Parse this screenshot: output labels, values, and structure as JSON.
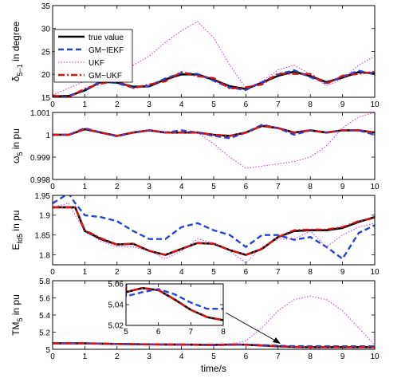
{
  "chart_data": [
    {
      "type": "line",
      "panel": "delta",
      "ylabel_main": "δ",
      "ylabel_sub": "5−1",
      "ylabel_rest": " in degree",
      "xlim": [
        0,
        10
      ],
      "ylim": [
        15,
        35
      ],
      "xticks": [
        "0",
        "1",
        "2",
        "3",
        "4",
        "5",
        "6",
        "7",
        "8",
        "9",
        "10"
      ],
      "yticks": [
        "15",
        "20",
        "25",
        "30",
        "35"
      ],
      "legend": [
        "true value",
        "GM−IEKF",
        "UKF",
        "GM−UKF"
      ],
      "series": [
        {
          "name": "true value",
          "x": [
            0,
            0.5,
            1,
            1.5,
            2,
            2.5,
            3,
            3.5,
            4,
            4.5,
            5,
            5.5,
            6,
            6.5,
            7,
            7.5,
            8,
            8.5,
            9,
            9.5,
            10
          ],
          "values": [
            15.2,
            15.3,
            16.5,
            18.4,
            18.2,
            17.3,
            17.4,
            18.9,
            20.0,
            20.0,
            18.8,
            17.4,
            16.8,
            18.2,
            19.7,
            20.6,
            19.6,
            18.3,
            19.3,
            20.5,
            20.2
          ]
        },
        {
          "name": "GM−IEKF",
          "x": [
            0,
            0.5,
            1,
            1.5,
            2,
            2.5,
            3,
            3.5,
            4,
            4.5,
            5,
            5.5,
            6,
            6.5,
            7,
            7.5,
            8,
            8.5,
            9,
            9.5,
            10
          ],
          "values": [
            15.0,
            15.2,
            16.6,
            18.5,
            18.1,
            17.1,
            17.5,
            19.1,
            20.3,
            20.1,
            18.6,
            17.1,
            16.6,
            18.3,
            20.0,
            20.9,
            19.4,
            18.1,
            19.5,
            20.8,
            20.0
          ]
        },
        {
          "name": "UKF",
          "x": [
            0,
            0.5,
            1,
            1.5,
            2,
            2.5,
            3,
            3.5,
            4,
            4.5,
            5,
            5.5,
            6,
            6.5,
            7,
            7.5,
            8,
            8.5,
            9,
            9.5,
            10
          ],
          "values": [
            15.5,
            17.0,
            18.5,
            19.5,
            19.8,
            22.0,
            24.0,
            27.0,
            29.5,
            31.5,
            28.0,
            22.0,
            17.0,
            18.5,
            21.0,
            22.0,
            20.0,
            17.5,
            19.0,
            22.0,
            24.0
          ]
        },
        {
          "name": "GM−UKF",
          "x": [
            0,
            0.5,
            1,
            1.5,
            2,
            2.5,
            3,
            3.5,
            4,
            4.5,
            5,
            5.5,
            6,
            6.5,
            7,
            7.5,
            8,
            8.5,
            9,
            9.5,
            10
          ],
          "values": [
            15.4,
            15.0,
            16.9,
            18.0,
            18.6,
            17.0,
            17.8,
            18.5,
            20.5,
            19.6,
            19.2,
            16.9,
            17.2,
            17.8,
            20.2,
            20.1,
            20.1,
            17.9,
            19.7,
            20.1,
            20.6
          ]
        }
      ]
    },
    {
      "type": "line",
      "panel": "omega",
      "ylabel_main": "ω",
      "ylabel_sub": "5",
      "ylabel_rest": " in pu",
      "xlim": [
        0,
        10
      ],
      "ylim": [
        0.998,
        1.001
      ],
      "xticks": [
        "0",
        "1",
        "2",
        "3",
        "4",
        "5",
        "6",
        "7",
        "8",
        "9",
        "10"
      ],
      "yticks": [
        "0.998",
        "0.999",
        "1",
        "1.001"
      ],
      "series": [
        {
          "name": "true value",
          "x": [
            0,
            0.5,
            1,
            1.5,
            2,
            2.5,
            3,
            3.5,
            4,
            4.5,
            5,
            5.5,
            6,
            6.5,
            7,
            7.5,
            8,
            8.5,
            9,
            9.5,
            10
          ],
          "values": [
            1.0,
            1.0,
            1.00025,
            1.0001,
            0.99995,
            1.0001,
            1.0002,
            1.0001,
            1.0001,
            1.0001,
            1.0,
            0.99995,
            1.0001,
            1.0004,
            1.0003,
            1.0001,
            1.0002,
            1.0001,
            1.0002,
            1.0002,
            1.0001
          ]
        },
        {
          "name": "GM−IEKF",
          "x": [
            0,
            0.5,
            1,
            1.5,
            2,
            2.5,
            3,
            3.5,
            4,
            4.5,
            5,
            5.5,
            6,
            6.5,
            7,
            7.5,
            8,
            8.5,
            9,
            9.5,
            10
          ],
          "values": [
            1.0,
            1.0,
            1.0003,
            1.0001,
            0.99993,
            1.0001,
            1.0002,
            1.0001,
            1.0002,
            1.0001,
            0.99995,
            0.99985,
            1.0001,
            1.00045,
            1.0003,
            1.0,
            1.0002,
            1.0001,
            1.0002,
            1.0002,
            1.0
          ]
        },
        {
          "name": "UKF",
          "x": [
            0,
            0.5,
            1,
            1.5,
            2,
            2.5,
            3,
            3.5,
            4,
            4.5,
            5,
            5.5,
            6,
            6.5,
            7,
            7.5,
            8,
            8.5,
            9,
            9.5,
            10
          ],
          "values": [
            1.0,
            1.0,
            1.0003,
            1.0001,
            0.99995,
            1.0001,
            1.0002,
            1.0001,
            1.0001,
            1.0001,
            0.9996,
            0.999,
            0.9985,
            0.9986,
            0.9987,
            0.9988,
            0.999,
            0.9995,
            1.0003,
            1.0008,
            1.001
          ]
        },
        {
          "name": "GM−UKF",
          "x": [
            0,
            0.5,
            1,
            1.5,
            2,
            2.5,
            3,
            3.5,
            4,
            4.5,
            5,
            5.5,
            6,
            6.5,
            7,
            7.5,
            8,
            8.5,
            9,
            9.5,
            10
          ],
          "values": [
            1.0,
            1.0,
            1.00025,
            1.0001,
            0.99995,
            1.0001,
            1.0002,
            1.0001,
            1.0001,
            1.0001,
            1.0,
            0.99995,
            1.0001,
            1.0004,
            1.0003,
            1.0001,
            1.0002,
            1.0001,
            1.0002,
            1.0002,
            1.0001
          ]
        }
      ]
    },
    {
      "type": "line",
      "panel": "eqd",
      "ylabel_main": "E",
      "ylabel_sub": "fd5",
      "ylabel_rest": " in pu",
      "xlim": [
        0,
        10
      ],
      "ylim": [
        1.775,
        1.95
      ],
      "xticks": [
        "0",
        "1",
        "2",
        "3",
        "4",
        "5",
        "6",
        "7",
        "8",
        "9",
        "10"
      ],
      "yticks": [
        "1.8",
        "1.85",
        "1.9",
        "1.95"
      ],
      "series": [
        {
          "name": "true value",
          "x": [
            0,
            0.5,
            0.7,
            1,
            1.5,
            2,
            2.5,
            3,
            3.5,
            4,
            4.5,
            5,
            5.5,
            6,
            6.5,
            7,
            7.5,
            8,
            8.5,
            9,
            9.5,
            10
          ],
          "values": [
            1.92,
            1.92,
            1.92,
            1.86,
            1.84,
            1.826,
            1.828,
            1.81,
            1.8,
            1.815,
            1.83,
            1.828,
            1.812,
            1.8,
            1.815,
            1.845,
            1.86,
            1.862,
            1.862,
            1.868,
            1.883,
            1.895
          ]
        },
        {
          "name": "GM−IEKF",
          "x": [
            0,
            0.5,
            0.7,
            1,
            1.5,
            2,
            2.5,
            3,
            3.5,
            4,
            4.5,
            5,
            5.5,
            6,
            6.5,
            7,
            7.5,
            8,
            8.5,
            9,
            9.5,
            10
          ],
          "values": [
            1.93,
            1.955,
            1.93,
            1.9,
            1.895,
            1.885,
            1.86,
            1.84,
            1.84,
            1.87,
            1.88,
            1.862,
            1.85,
            1.82,
            1.85,
            1.85,
            1.838,
            1.845,
            1.82,
            1.79,
            1.855,
            1.875
          ]
        },
        {
          "name": "UKF",
          "x": [
            0,
            0.5,
            0.7,
            1,
            1.5,
            2,
            2.5,
            3,
            3.5,
            4,
            4.5,
            5,
            5.5,
            6,
            6.5,
            7,
            7.5,
            8,
            8.5,
            9,
            9.5,
            10
          ],
          "values": [
            1.92,
            1.93,
            1.9,
            1.86,
            1.835,
            1.82,
            1.82,
            1.81,
            1.79,
            1.81,
            1.84,
            1.83,
            1.81,
            1.78,
            1.82,
            1.84,
            1.84,
            1.86,
            1.82,
            1.85,
            1.87,
            1.88
          ]
        },
        {
          "name": "GM−UKF",
          "x": [
            0,
            0.5,
            0.7,
            1,
            1.5,
            2,
            2.5,
            3,
            3.5,
            4,
            4.5,
            5,
            5.5,
            6,
            6.5,
            7,
            7.5,
            8,
            8.5,
            9,
            9.5,
            10
          ],
          "values": [
            1.92,
            1.92,
            1.92,
            1.862,
            1.842,
            1.826,
            1.828,
            1.81,
            1.8,
            1.815,
            1.83,
            1.828,
            1.812,
            1.8,
            1.815,
            1.845,
            1.862,
            1.864,
            1.864,
            1.87,
            1.885,
            1.893
          ]
        }
      ]
    },
    {
      "type": "line",
      "panel": "tm",
      "ylabel_main": "TM",
      "ylabel_sub": "5",
      "ylabel_rest": " in pu",
      "xlabel": "time/s",
      "xlim": [
        0,
        10
      ],
      "ylim": [
        5.0,
        5.8
      ],
      "xticks": [
        "0",
        "1",
        "2",
        "3",
        "4",
        "5",
        "6",
        "7",
        "8",
        "9",
        "10"
      ],
      "yticks": [
        "5",
        "5.2",
        "5.4",
        "5.6",
        "5.8"
      ],
      "series": [
        {
          "name": "true value",
          "x": [
            0,
            1,
            2,
            3,
            4,
            5,
            5.5,
            6,
            6.5,
            7,
            7.5,
            8,
            9,
            10
          ],
          "values": [
            5.07,
            5.07,
            5.062,
            5.058,
            5.055,
            5.052,
            5.056,
            5.054,
            5.045,
            5.035,
            5.028,
            5.025,
            5.025,
            5.025
          ]
        },
        {
          "name": "GM−IEKF",
          "x": [
            0,
            1,
            2,
            3,
            4,
            5,
            5.5,
            6,
            6.5,
            7,
            7.5,
            8,
            9,
            10
          ],
          "values": [
            5.07,
            5.07,
            5.062,
            5.058,
            5.055,
            5.048,
            5.052,
            5.055,
            5.05,
            5.042,
            5.036,
            5.036,
            5.035,
            5.035
          ]
        },
        {
          "name": "UKF",
          "x": [
            0,
            1,
            2,
            3,
            4,
            5,
            5.5,
            6,
            6.5,
            7,
            7.5,
            8,
            8.5,
            9,
            9.5,
            10
          ],
          "values": [
            5.07,
            5.07,
            5.062,
            5.058,
            5.055,
            5.052,
            5.055,
            5.1,
            5.25,
            5.45,
            5.58,
            5.62,
            5.58,
            5.45,
            5.25,
            5.05
          ]
        },
        {
          "name": "GM−UKF",
          "x": [
            0,
            1,
            2,
            3,
            4,
            5,
            5.5,
            6,
            6.5,
            7,
            7.5,
            8,
            9,
            10
          ],
          "values": [
            5.07,
            5.07,
            5.062,
            5.058,
            5.055,
            5.052,
            5.056,
            5.054,
            5.045,
            5.035,
            5.028,
            5.025,
            5.025,
            5.025
          ]
        }
      ],
      "inset": {
        "xlim": [
          5,
          8
        ],
        "ylim": [
          5.02,
          5.06
        ],
        "xticks": [
          "5",
          "6",
          "7",
          "8"
        ],
        "yticks": [
          "5.02",
          "5.04",
          "5.06"
        ]
      }
    }
  ],
  "colors": {
    "true value": "#000000",
    "GM−IEKF": "#2244dd",
    "UKF": "#cc33cc",
    "GM−UKF": "#dd1111"
  }
}
